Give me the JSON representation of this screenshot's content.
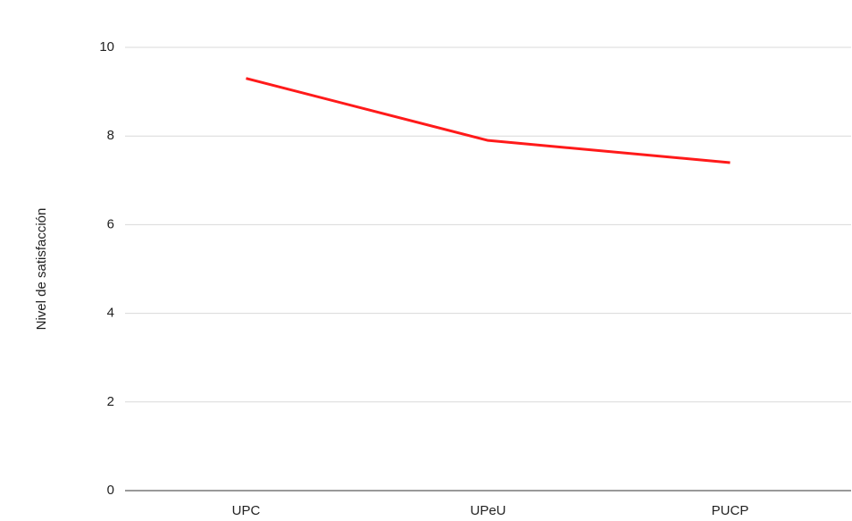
{
  "chart_data": {
    "type": "line",
    "y_label": "Nivel de satisfacción",
    "categories": [
      "UPC",
      "UPeU",
      "PUCP"
    ],
    "values": [
      9.3,
      7.9,
      7.4
    ],
    "color": "#ff1a1a",
    "ylim": [
      0,
      10
    ],
    "yticks": [
      0,
      2,
      4,
      6,
      8,
      10
    ],
    "grid": true
  }
}
